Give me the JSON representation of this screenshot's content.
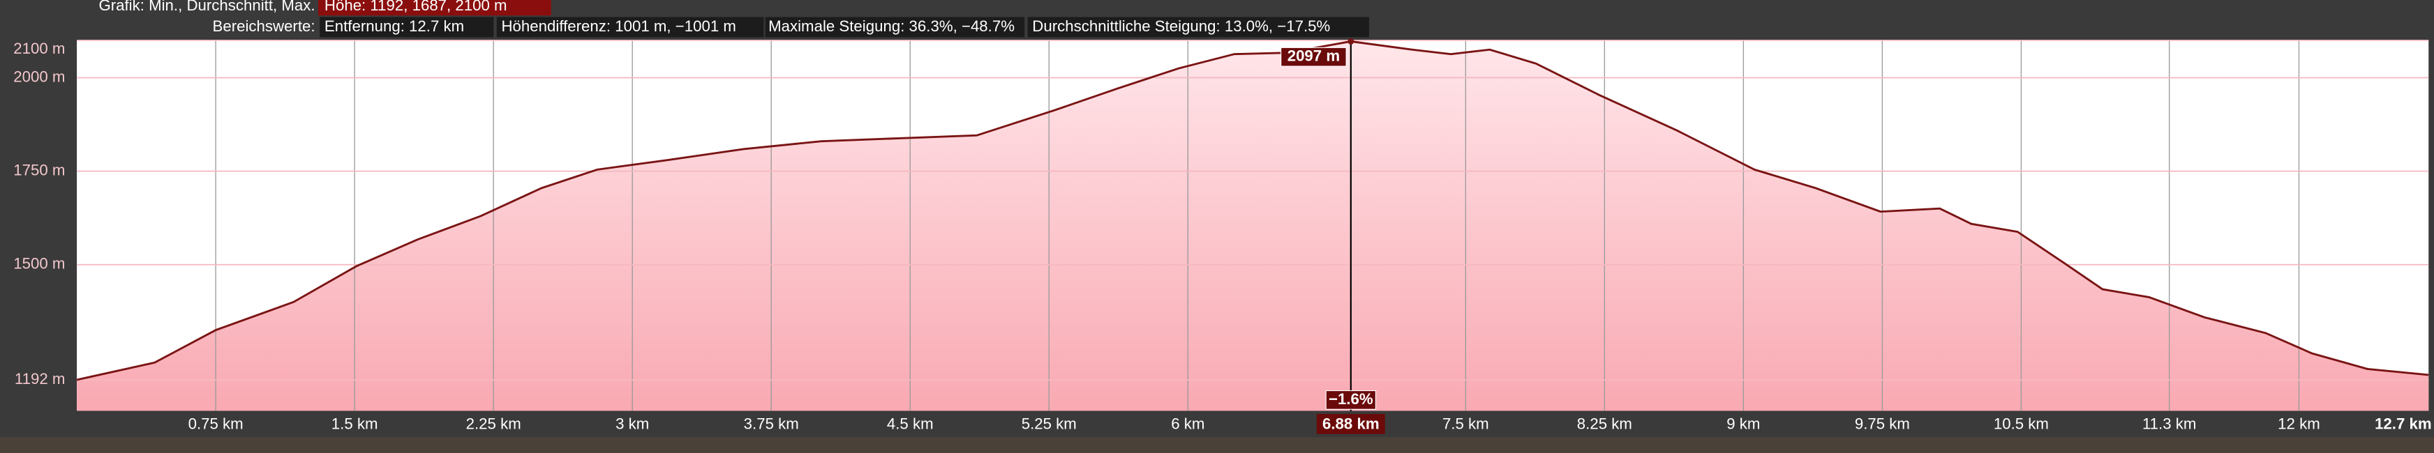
{
  "header": {
    "graph_label": "Grafik: Min., Durchschnitt, Max.",
    "height_stats": "Höhe: 1192, 1687, 2100 m",
    "range_label": "Bereichswerte:",
    "distance": "Entfernung: 12.7 km",
    "height_difference": "Höhendifferenz: 1001 m, −1001 m",
    "max_grade": "Maximale Steigung: 36.3%, −48.7%",
    "avg_grade": "Durchschnittliche Steigung: 13.0%, −17.5%"
  },
  "chart_data": {
    "type": "area",
    "color": "#7a1414",
    "x": [
      0,
      0.42,
      0.75,
      1.17,
      1.51,
      1.84,
      2.18,
      2.51,
      2.81,
      3.18,
      3.6,
      4.02,
      4.44,
      4.86,
      5.28,
      5.62,
      5.95,
      6.25,
      6.54,
      6.88,
      7.21,
      7.42,
      7.63,
      7.88,
      8.22,
      8.64,
      9.06,
      9.39,
      9.74,
      10.06,
      10.23,
      10.48,
      10.73,
      10.94,
      11.19,
      11.49,
      11.82,
      12.07,
      12.37,
      12.7
    ],
    "values": [
      1192,
      1238,
      1325,
      1400,
      1496,
      1567,
      1630,
      1705,
      1754,
      1779,
      1809,
      1830,
      1838,
      1846,
      1913,
      1971,
      2025,
      2063,
      2067,
      2097,
      2075,
      2063,
      2075,
      2038,
      1954,
      1859,
      1754,
      1705,
      1642,
      1650,
      1609,
      1588,
      1505,
      1434,
      1413,
      1359,
      1317,
      1263,
      1221,
      1205
    ],
    "xlim": [
      0,
      12.7
    ],
    "ylim": [
      1109,
      2100
    ],
    "xticks": [
      {
        "value": 0.75,
        "label": "0.75 km"
      },
      {
        "value": 1.5,
        "label": "1.5 km"
      },
      {
        "value": 2.25,
        "label": "2.25 km"
      },
      {
        "value": 3,
        "label": "3 km"
      },
      {
        "value": 3.75,
        "label": "3.75 km"
      },
      {
        "value": 4.5,
        "label": "4.5 km"
      },
      {
        "value": 5.25,
        "label": "5.25 km"
      },
      {
        "value": 6,
        "label": "6 km"
      },
      {
        "value": 7.5,
        "label": "7.5 km"
      },
      {
        "value": 8.25,
        "label": "8.25 km"
      },
      {
        "value": 9,
        "label": "9 km"
      },
      {
        "value": 9.75,
        "label": "9.75 km"
      },
      {
        "value": 10.5,
        "label": "10.5 km"
      },
      {
        "value": 11.3,
        "label": "11.3 km"
      },
      {
        "value": 12,
        "label": "12 km"
      },
      {
        "value": 12.7,
        "label": "12.7 km"
      }
    ],
    "yticks": [
      {
        "value": 1192,
        "label": "1192 m"
      },
      {
        "value": 1500,
        "label": "1500 m"
      },
      {
        "value": 1750,
        "label": "1750 m"
      },
      {
        "value": 2000,
        "label": "2000 m"
      },
      {
        "value": 2100,
        "label": "2100 m"
      }
    ],
    "grid": true,
    "cursor": {
      "x": {
        "value": 6.88,
        "label": "6.88 km"
      },
      "elevation": {
        "value": 2097,
        "label": "2097 m"
      },
      "grade": "−1.6%"
    }
  }
}
